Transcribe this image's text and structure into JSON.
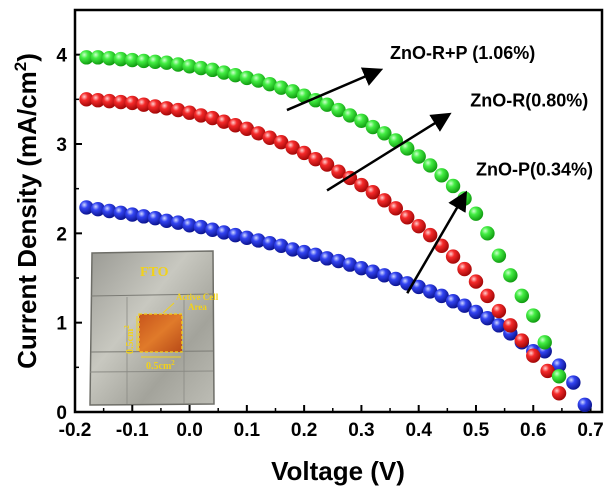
{
  "chart_data": {
    "type": "scatter",
    "xlabel": "Voltage (V)",
    "ylabel_main": "Current Density (mA/cm",
    "ylabel_sup": "2",
    "ylabel_tail": ")",
    "xlim": [
      -0.2,
      0.72
    ],
    "ylim": [
      0,
      4.5
    ],
    "x_ticks": [
      "-0.2",
      "-0.1",
      "0.0",
      "0.1",
      "0.2",
      "0.3",
      "0.4",
      "0.5",
      "0.6",
      "0.7"
    ],
    "y_ticks": [
      "0",
      "1",
      "2",
      "3",
      "4"
    ],
    "grid": false,
    "series": [
      {
        "name": "ZnO-R+P (1.06%)",
        "color": "#22e022",
        "points": [
          [
            -0.18,
            3.97
          ],
          [
            -0.16,
            3.97
          ],
          [
            -0.14,
            3.96
          ],
          [
            -0.12,
            3.95
          ],
          [
            -0.1,
            3.94
          ],
          [
            -0.08,
            3.93
          ],
          [
            -0.06,
            3.92
          ],
          [
            -0.04,
            3.91
          ],
          [
            -0.02,
            3.89
          ],
          [
            0.0,
            3.87
          ],
          [
            0.02,
            3.85
          ],
          [
            0.04,
            3.83
          ],
          [
            0.06,
            3.8
          ],
          [
            0.08,
            3.77
          ],
          [
            0.1,
            3.74
          ],
          [
            0.12,
            3.71
          ],
          [
            0.14,
            3.67
          ],
          [
            0.16,
            3.63
          ],
          [
            0.18,
            3.59
          ],
          [
            0.2,
            3.54
          ],
          [
            0.22,
            3.49
          ],
          [
            0.24,
            3.44
          ],
          [
            0.26,
            3.38
          ],
          [
            0.28,
            3.32
          ],
          [
            0.3,
            3.26
          ],
          [
            0.32,
            3.19
          ],
          [
            0.34,
            3.12
          ],
          [
            0.36,
            3.04
          ],
          [
            0.38,
            2.95
          ],
          [
            0.4,
            2.86
          ],
          [
            0.42,
            2.76
          ],
          [
            0.44,
            2.65
          ],
          [
            0.46,
            2.53
          ],
          [
            0.48,
            2.39
          ],
          [
            0.5,
            2.22
          ],
          [
            0.52,
            2.0
          ],
          [
            0.54,
            1.75
          ],
          [
            0.56,
            1.53
          ],
          [
            0.58,
            1.3
          ],
          [
            0.6,
            1.08
          ],
          [
            0.62,
            0.78
          ],
          [
            0.645,
            0.4
          ]
        ]
      },
      {
        "name": "ZnO-R(0.80%)",
        "color": "#ee1414",
        "points": [
          [
            -0.18,
            3.5
          ],
          [
            -0.16,
            3.49
          ],
          [
            -0.14,
            3.48
          ],
          [
            -0.12,
            3.47
          ],
          [
            -0.1,
            3.46
          ],
          [
            -0.08,
            3.44
          ],
          [
            -0.06,
            3.42
          ],
          [
            -0.04,
            3.4
          ],
          [
            -0.02,
            3.38
          ],
          [
            0.0,
            3.35
          ],
          [
            0.02,
            3.32
          ],
          [
            0.04,
            3.29
          ],
          [
            0.06,
            3.25
          ],
          [
            0.08,
            3.21
          ],
          [
            0.1,
            3.17
          ],
          [
            0.12,
            3.12
          ],
          [
            0.14,
            3.07
          ],
          [
            0.16,
            3.02
          ],
          [
            0.18,
            2.96
          ],
          [
            0.2,
            2.9
          ],
          [
            0.22,
            2.83
          ],
          [
            0.24,
            2.77
          ],
          [
            0.26,
            2.69
          ],
          [
            0.28,
            2.62
          ],
          [
            0.3,
            2.54
          ],
          [
            0.32,
            2.46
          ],
          [
            0.34,
            2.37
          ],
          [
            0.36,
            2.28
          ],
          [
            0.38,
            2.18
          ],
          [
            0.4,
            2.08
          ],
          [
            0.42,
            1.98
          ],
          [
            0.44,
            1.86
          ],
          [
            0.46,
            1.74
          ],
          [
            0.48,
            1.6
          ],
          [
            0.5,
            1.46
          ],
          [
            0.52,
            1.3
          ],
          [
            0.54,
            1.13
          ],
          [
            0.56,
            0.97
          ],
          [
            0.58,
            0.8
          ],
          [
            0.6,
            0.63
          ],
          [
            0.625,
            0.46
          ],
          [
            0.645,
            0.21
          ]
        ]
      },
      {
        "name": "ZnO-P(0.34%)",
        "color": "#1a28e6",
        "points": [
          [
            -0.18,
            2.29
          ],
          [
            -0.16,
            2.27
          ],
          [
            -0.14,
            2.25
          ],
          [
            -0.12,
            2.23
          ],
          [
            -0.1,
            2.21
          ],
          [
            -0.08,
            2.19
          ],
          [
            -0.06,
            2.17
          ],
          [
            -0.04,
            2.14
          ],
          [
            -0.02,
            2.12
          ],
          [
            0.0,
            2.09
          ],
          [
            0.02,
            2.07
          ],
          [
            0.04,
            2.04
          ],
          [
            0.06,
            2.01
          ],
          [
            0.08,
            1.98
          ],
          [
            0.1,
            1.95
          ],
          [
            0.12,
            1.92
          ],
          [
            0.14,
            1.89
          ],
          [
            0.16,
            1.86
          ],
          [
            0.18,
            1.82
          ],
          [
            0.2,
            1.79
          ],
          [
            0.22,
            1.76
          ],
          [
            0.24,
            1.72
          ],
          [
            0.26,
            1.69
          ],
          [
            0.28,
            1.65
          ],
          [
            0.3,
            1.61
          ],
          [
            0.32,
            1.57
          ],
          [
            0.34,
            1.53
          ],
          [
            0.36,
            1.49
          ],
          [
            0.38,
            1.44
          ],
          [
            0.4,
            1.4
          ],
          [
            0.42,
            1.35
          ],
          [
            0.44,
            1.3
          ],
          [
            0.46,
            1.24
          ],
          [
            0.48,
            1.19
          ],
          [
            0.5,
            1.12
          ],
          [
            0.52,
            1.05
          ],
          [
            0.54,
            0.97
          ],
          [
            0.56,
            0.88
          ],
          [
            0.58,
            0.78
          ],
          [
            0.6,
            0.68
          ],
          [
            0.62,
            0.68
          ],
          [
            0.645,
            0.52
          ],
          [
            0.67,
            0.33
          ],
          [
            0.69,
            0.08
          ]
        ]
      }
    ],
    "annotations": [
      {
        "text": "ZnO-R+P (1.06%)",
        "tx": 0.35,
        "ty": 3.95,
        "ax": 0.17,
        "ay": 3.38,
        "hx": 0.33,
        "hy": 3.82
      },
      {
        "text": "ZnO-R(0.80%)",
        "tx": 0.49,
        "ty": 3.42,
        "ax": 0.24,
        "ay": 2.48,
        "hx": 0.45,
        "hy": 3.32
      },
      {
        "text": "ZnO-P(0.34%)",
        "tx": 0.5,
        "ty": 2.65,
        "ax": 0.38,
        "ay": 1.33,
        "hx": 0.48,
        "hy": 2.43
      }
    ]
  },
  "inset": {
    "fto_label": "FTO",
    "active_area_label_1": "Active Cell",
    "active_area_label_2": "Area",
    "dim_vertical": "0.5cm",
    "dim_vertical_sup": "2",
    "dim_horizontal": "0.5cm",
    "dim_horizontal_sup": "2"
  }
}
